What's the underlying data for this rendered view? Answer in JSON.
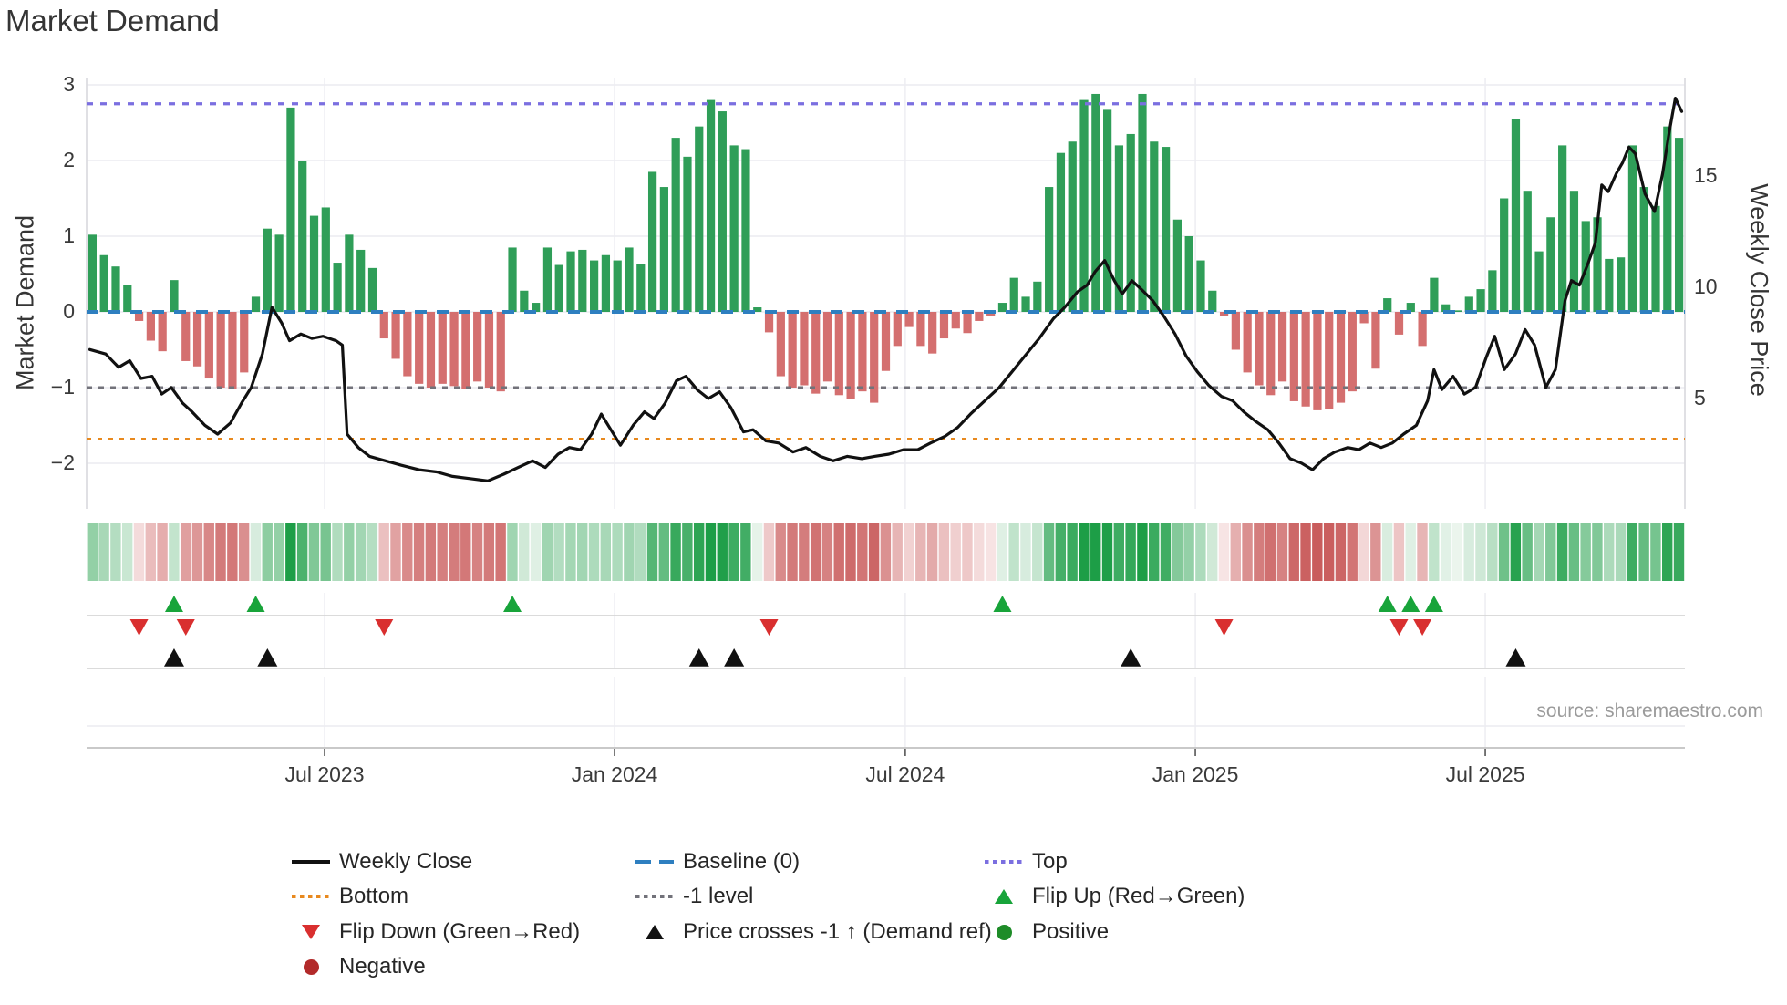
{
  "title": "Market Demand",
  "source_text": "source: sharemaestro.com",
  "colors": {
    "bar_positive": "#2f9e58",
    "bar_negative": "#d46f6f",
    "price_line": "#111111",
    "baseline": "#2e7fc0",
    "top_line": "#7b6fe0",
    "bottom_line": "#e8891e",
    "minus1_line": "#72727a",
    "flip_up": "#18a43a",
    "flip_down": "#d92f2f",
    "price_cross": "#111111",
    "negative_dot": "#b22a2a",
    "positive_dot": "#1e8c28",
    "heat_green": "#1d9e47",
    "heat_red": "#c44d4d",
    "grid": "#ececf1"
  },
  "axes": {
    "left_label": "Market Demand",
    "right_label": "Weekly Close Price",
    "left_ticks": [
      {
        "label": "3",
        "value": 3
      },
      {
        "label": "2",
        "value": 2
      },
      {
        "label": "1",
        "value": 1
      },
      {
        "label": "0",
        "value": 0
      },
      {
        "label": "−1",
        "value": -1
      },
      {
        "label": "−2",
        "value": -2
      }
    ],
    "right_ticks": [
      {
        "label": "15",
        "value": 15
      },
      {
        "label": "10",
        "value": 10
      },
      {
        "label": "5",
        "value": 5
      }
    ],
    "x_ticks": [
      {
        "label": "Jul 2023",
        "f": 0.1489
      },
      {
        "label": "Jan 2024",
        "f": 0.3303
      },
      {
        "label": "Jul 2024",
        "f": 0.5122
      },
      {
        "label": "Jan 2025",
        "f": 0.6937
      },
      {
        "label": "Jul 2025",
        "f": 0.8751
      }
    ]
  },
  "chart_data": {
    "type": "bar+line",
    "x_unit": "weekly",
    "x_range": [
      "Feb 2023",
      "Nov 2025"
    ],
    "demand_axis_range": [
      -2.7,
      3
    ],
    "price_axis_ticks": [
      5,
      10,
      15
    ],
    "grid": true,
    "reference_lines": {
      "top": 2.75,
      "baseline": 0,
      "minus1": -1,
      "bottom": -1.68
    },
    "demand_bars": {
      "name": "Market Demand",
      "values": [
        1.02,
        0.75,
        0.6,
        0.35,
        -0.12,
        -0.38,
        -0.52,
        0.42,
        -0.65,
        -0.72,
        -0.88,
        -1.0,
        -1.02,
        -0.8,
        0.2,
        1.1,
        1.02,
        2.7,
        2.0,
        1.27,
        1.38,
        0.65,
        1.02,
        0.82,
        0.58,
        -0.35,
        -0.62,
        -0.85,
        -0.95,
        -1.0,
        -0.95,
        -0.98,
        -1.02,
        -0.92,
        -1.0,
        -1.05,
        0.85,
        0.28,
        0.12,
        0.85,
        0.62,
        0.8,
        0.82,
        0.68,
        0.75,
        0.68,
        0.85,
        0.63,
        1.85,
        1.65,
        2.3,
        2.05,
        2.45,
        2.8,
        2.65,
        2.2,
        2.15,
        0.06,
        -0.27,
        -0.85,
        -1.0,
        -0.97,
        -1.08,
        -0.92,
        -1.1,
        -1.15,
        -1.05,
        -1.2,
        -0.78,
        -0.45,
        -0.2,
        -0.45,
        -0.55,
        -0.35,
        -0.22,
        -0.28,
        -0.12,
        -0.06,
        0.12,
        0.45,
        0.2,
        0.4,
        1.65,
        2.1,
        2.25,
        2.8,
        2.88,
        2.67,
        2.2,
        2.35,
        2.88,
        2.25,
        2.18,
        1.22,
        1.0,
        0.68,
        0.28,
        -0.05,
        -0.5,
        -0.8,
        -0.97,
        -1.1,
        -0.92,
        -1.18,
        -1.25,
        -1.3,
        -1.28,
        -1.2,
        -1.05,
        -0.15,
        -0.75,
        0.18,
        -0.3,
        0.12,
        -0.45,
        0.45,
        0.1,
        0.02,
        0.2,
        0.3,
        0.55,
        1.5,
        2.55,
        1.6,
        0.8,
        1.25,
        2.2,
        1.6,
        1.2,
        1.25,
        0.7,
        0.72,
        2.2,
        1.65,
        1.4,
        2.45,
        2.3
      ]
    },
    "price_series": {
      "name": "Weekly Close",
      "points": [
        [
          0.002,
          7.2
        ],
        [
          0.012,
          7.0
        ],
        [
          0.02,
          6.4
        ],
        [
          0.027,
          6.7
        ],
        [
          0.034,
          5.9
        ],
        [
          0.041,
          6.0
        ],
        [
          0.047,
          5.2
        ],
        [
          0.053,
          5.5
        ],
        [
          0.06,
          4.8
        ],
        [
          0.066,
          4.4
        ],
        [
          0.074,
          3.8
        ],
        [
          0.082,
          3.4
        ],
        [
          0.09,
          3.9
        ],
        [
          0.097,
          4.8
        ],
        [
          0.103,
          5.5
        ],
        [
          0.11,
          7.0
        ],
        [
          0.116,
          9.1
        ],
        [
          0.122,
          8.4
        ],
        [
          0.127,
          7.6
        ],
        [
          0.134,
          7.9
        ],
        [
          0.141,
          7.7
        ],
        [
          0.148,
          7.8
        ],
        [
          0.156,
          7.6
        ],
        [
          0.16,
          7.4
        ],
        [
          0.163,
          3.4
        ],
        [
          0.17,
          2.8
        ],
        [
          0.177,
          2.4
        ],
        [
          0.187,
          2.2
        ],
        [
          0.197,
          2.0
        ],
        [
          0.208,
          1.8
        ],
        [
          0.219,
          1.7
        ],
        [
          0.229,
          1.5
        ],
        [
          0.24,
          1.4
        ],
        [
          0.251,
          1.3
        ],
        [
          0.261,
          1.6
        ],
        [
          0.27,
          1.9
        ],
        [
          0.279,
          2.2
        ],
        [
          0.287,
          1.9
        ],
        [
          0.295,
          2.5
        ],
        [
          0.302,
          2.8
        ],
        [
          0.309,
          2.7
        ],
        [
          0.316,
          3.4
        ],
        [
          0.322,
          4.3
        ],
        [
          0.328,
          3.6
        ],
        [
          0.334,
          2.9
        ],
        [
          0.342,
          3.8
        ],
        [
          0.349,
          4.4
        ],
        [
          0.355,
          4.1
        ],
        [
          0.362,
          4.8
        ],
        [
          0.369,
          5.8
        ],
        [
          0.375,
          6.0
        ],
        [
          0.382,
          5.4
        ],
        [
          0.389,
          5.0
        ],
        [
          0.396,
          5.3
        ],
        [
          0.403,
          4.6
        ],
        [
          0.411,
          3.5
        ],
        [
          0.417,
          3.6
        ],
        [
          0.425,
          3.1
        ],
        [
          0.433,
          3.0
        ],
        [
          0.442,
          2.6
        ],
        [
          0.45,
          2.8
        ],
        [
          0.459,
          2.4
        ],
        [
          0.467,
          2.2
        ],
        [
          0.476,
          2.4
        ],
        [
          0.485,
          2.3
        ],
        [
          0.493,
          2.4
        ],
        [
          0.502,
          2.5
        ],
        [
          0.511,
          2.7
        ],
        [
          0.52,
          2.7
        ],
        [
          0.528,
          3.0
        ],
        [
          0.537,
          3.3
        ],
        [
          0.545,
          3.7
        ],
        [
          0.553,
          4.3
        ],
        [
          0.562,
          4.9
        ],
        [
          0.571,
          5.5
        ],
        [
          0.579,
          6.2
        ],
        [
          0.588,
          7.0
        ],
        [
          0.596,
          7.7
        ],
        [
          0.605,
          8.6
        ],
        [
          0.612,
          9.1
        ],
        [
          0.62,
          9.8
        ],
        [
          0.626,
          10.1
        ],
        [
          0.631,
          10.7
        ],
        [
          0.637,
          11.2
        ],
        [
          0.643,
          10.3
        ],
        [
          0.648,
          9.7
        ],
        [
          0.654,
          10.3
        ],
        [
          0.66,
          9.9
        ],
        [
          0.667,
          9.4
        ],
        [
          0.674,
          8.7
        ],
        [
          0.681,
          7.9
        ],
        [
          0.688,
          6.9
        ],
        [
          0.695,
          6.2
        ],
        [
          0.702,
          5.6
        ],
        [
          0.71,
          5.1
        ],
        [
          0.717,
          4.9
        ],
        [
          0.724,
          4.4
        ],
        [
          0.731,
          4.0
        ],
        [
          0.739,
          3.6
        ],
        [
          0.746,
          3.0
        ],
        [
          0.753,
          2.3
        ],
        [
          0.76,
          2.1
        ],
        [
          0.767,
          1.8
        ],
        [
          0.774,
          2.3
        ],
        [
          0.781,
          2.6
        ],
        [
          0.789,
          2.8
        ],
        [
          0.796,
          2.7
        ],
        [
          0.803,
          3.0
        ],
        [
          0.81,
          2.8
        ],
        [
          0.817,
          3.0
        ],
        [
          0.824,
          3.4
        ],
        [
          0.832,
          3.8
        ],
        [
          0.839,
          4.9
        ],
        [
          0.843,
          6.3
        ],
        [
          0.848,
          5.4
        ],
        [
          0.855,
          6.0
        ],
        [
          0.862,
          5.2
        ],
        [
          0.869,
          5.5
        ],
        [
          0.876,
          6.9
        ],
        [
          0.881,
          7.8
        ],
        [
          0.887,
          6.3
        ],
        [
          0.894,
          7.0
        ],
        [
          0.9,
          8.1
        ],
        [
          0.906,
          7.4
        ],
        [
          0.913,
          5.5
        ],
        [
          0.919,
          6.3
        ],
        [
          0.925,
          9.4
        ],
        [
          0.929,
          10.3
        ],
        [
          0.934,
          10.1
        ],
        [
          0.939,
          11.0
        ],
        [
          0.944,
          12.0
        ],
        [
          0.948,
          14.6
        ],
        [
          0.952,
          14.3
        ],
        [
          0.957,
          15.1
        ],
        [
          0.961,
          15.6
        ],
        [
          0.965,
          16.3
        ],
        [
          0.969,
          16.0
        ],
        [
          0.975,
          14.2
        ],
        [
          0.981,
          13.4
        ],
        [
          0.986,
          15.1
        ],
        [
          0.99,
          16.9
        ],
        [
          0.994,
          18.5
        ],
        [
          0.998,
          17.9
        ]
      ]
    },
    "markers": {
      "flip_up": {
        "label": "Flip Up (Red→Green)",
        "bar_indices": [
          7,
          14,
          36,
          78,
          111,
          113,
          115
        ]
      },
      "flip_down": {
        "label": "Flip Down (Green→Red)",
        "bar_indices": [
          4,
          8,
          25,
          58,
          97,
          112,
          114
        ]
      },
      "price_cross": {
        "label": "Price crosses -1 ↑ (Demand ref)",
        "bar_indices": [
          7,
          15,
          52,
          55,
          89,
          122
        ]
      }
    },
    "heat_strip": "per-week color intensity derived from demand_bars.values (green positive, red negative)"
  },
  "legend": {
    "col1": [
      {
        "label": "Weekly Close",
        "type": "line",
        "color": "#111111"
      },
      {
        "label": "Bottom",
        "type": "dotted",
        "color": "#e8891e"
      },
      {
        "label": "Flip Down (Green→Red)",
        "type": "tri-down",
        "color": "#d92f2f"
      },
      {
        "label": "Negative",
        "type": "circle",
        "color": "#b22a2a"
      }
    ],
    "col2": [
      {
        "label": "Baseline (0)",
        "type": "dashed",
        "color": "#2e7fc0"
      },
      {
        "label": "-1 level",
        "type": "dotted",
        "color": "#72727a"
      },
      {
        "label": "Price crosses -1 ↑ (Demand ref)",
        "type": "tri-up",
        "color": "#111111"
      }
    ],
    "col3": [
      {
        "label": "Top",
        "type": "dotted",
        "color": "#7b6fe0"
      },
      {
        "label": "Flip Up (Red→Green)",
        "type": "tri-up",
        "color": "#18a43a"
      },
      {
        "label": "Positive",
        "type": "circle",
        "color": "#1e8c28"
      }
    ]
  }
}
